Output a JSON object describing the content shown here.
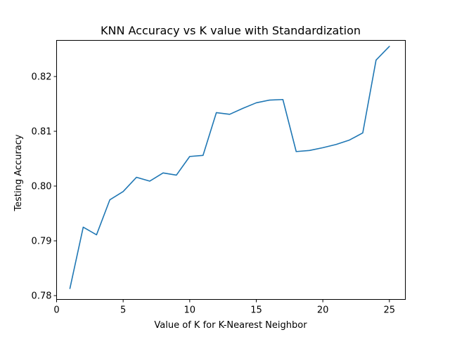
{
  "chart_data": {
    "type": "line",
    "title": "KNN Accuracy vs K value with Standardization",
    "xlabel": "Value of K for K-Nearest Neighbor",
    "ylabel": "Testing Accuracy",
    "xlim": [
      0,
      26.2
    ],
    "ylim": [
      0.7793,
      0.8266
    ],
    "xticks": [
      0,
      5,
      10,
      15,
      20,
      25
    ],
    "yticks": [
      0.78,
      0.79,
      0.8,
      0.81,
      0.82
    ],
    "ytick_labels": [
      "0.78",
      "0.79",
      "0.80",
      "0.81",
      "0.82"
    ],
    "grid": false,
    "series": [
      {
        "color": "#1f77b4",
        "x": [
          1,
          2,
          3,
          4,
          5,
          6,
          7,
          8,
          9,
          10,
          11,
          12,
          13,
          14,
          15,
          16,
          17,
          18,
          19,
          20,
          21,
          22,
          23,
          24,
          25
        ],
        "y": [
          0.7813,
          0.7925,
          0.7911,
          0.7975,
          0.799,
          0.8016,
          0.8009,
          0.8024,
          0.802,
          0.8054,
          0.8056,
          0.8134,
          0.8131,
          0.8142,
          0.8152,
          0.8157,
          0.8158,
          0.8063,
          0.8065,
          0.807,
          0.8076,
          0.8084,
          0.8097,
          0.823,
          0.8255
        ]
      }
    ]
  }
}
